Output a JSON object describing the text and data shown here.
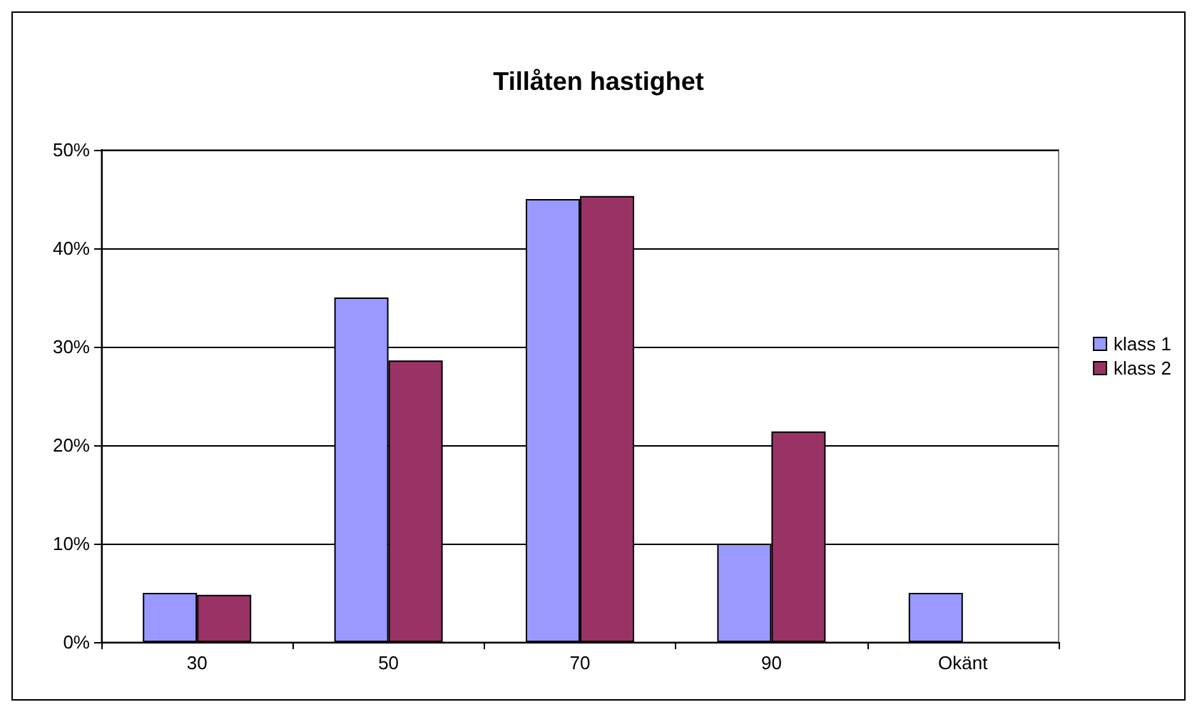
{
  "chart_data": {
    "type": "bar",
    "title": "Tillåten hastighet",
    "categories": [
      "30",
      "50",
      "70",
      "90",
      "Okänt"
    ],
    "series": [
      {
        "name": "klass 1",
        "color": "#9999ff",
        "values": [
          5,
          35,
          45,
          10,
          5
        ]
      },
      {
        "name": "klass 2",
        "color": "#993366",
        "values": [
          4.8,
          28.6,
          45.3,
          21.4,
          null
        ]
      }
    ],
    "ylim": [
      0,
      50
    ],
    "yticks": [
      {
        "value": 0,
        "label": "0%"
      },
      {
        "value": 10,
        "label": "10%"
      },
      {
        "value": 20,
        "label": "20%"
      },
      {
        "value": 30,
        "label": "30%"
      },
      {
        "value": 40,
        "label": "40%"
      },
      {
        "value": 50,
        "label": "50%"
      }
    ],
    "grid": "y",
    "legend": "right"
  }
}
